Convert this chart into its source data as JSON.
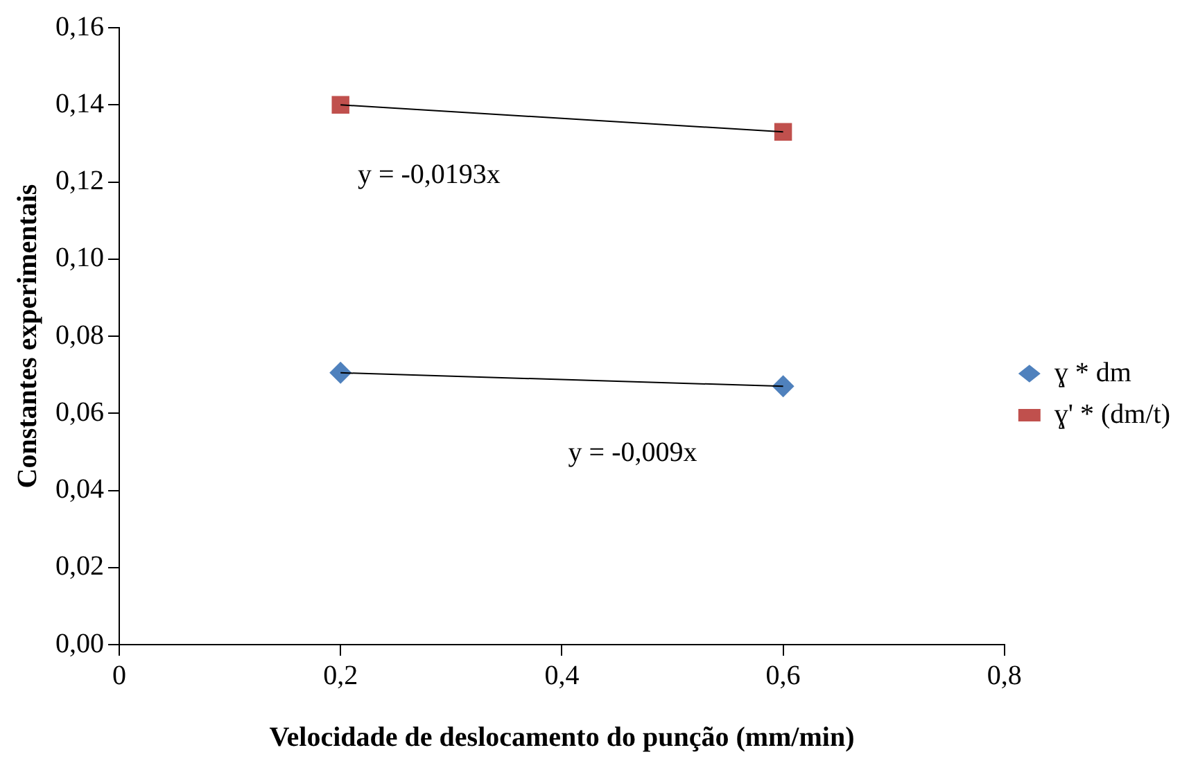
{
  "chart_data": {
    "type": "scatter",
    "xlabel": "Velocidade de deslocamento do punção (mm/min)",
    "ylabel": "Constantes experimentais",
    "x": [
      0.2,
      0.6
    ],
    "xlim": [
      0,
      0.8
    ],
    "xticks": [
      0,
      {
        "value": 0.2,
        "label": "0,2"
      },
      {
        "value": 0.4,
        "label": "0,4"
      },
      {
        "value": 0.6,
        "label": "0,6"
      },
      {
        "value": 0.8,
        "label": "0,8"
      }
    ],
    "ylim": [
      0,
      0.16
    ],
    "yticks": [
      {
        "value": 0,
        "label": "0,00"
      },
      {
        "value": 0.02,
        "label": "0,02"
      },
      {
        "value": 0.04,
        "label": "0,04"
      },
      {
        "value": 0.06,
        "label": "0,06"
      },
      {
        "value": 0.08,
        "label": "0,08"
      },
      {
        "value": 0.1,
        "label": "0,10"
      },
      {
        "value": 0.12,
        "label": "0,12"
      },
      {
        "value": 0.14,
        "label": "0,14"
      },
      {
        "value": 0.16,
        "label": "0,16"
      }
    ],
    "grid": false,
    "legend": "right",
    "series": [
      {
        "name": "ɣ * dm",
        "color": "#4f81bd",
        "marker": "diamond",
        "values": [
          0.0705,
          0.067
        ]
      },
      {
        "name": "ɣ' * (dm/t)",
        "color": "#c0504d",
        "marker": "square",
        "values": [
          0.14,
          0.133
        ]
      },
      {
        "type": "line",
        "color": "#000000",
        "marker": "none",
        "values": [
          0.0705,
          0.067
        ]
      },
      {
        "type": "line",
        "color": "#000000",
        "marker": "none",
        "values": [
          0.14,
          0.133
        ]
      }
    ],
    "annotations": [
      "y = -0,0193x",
      "y = -0,009x"
    ]
  }
}
